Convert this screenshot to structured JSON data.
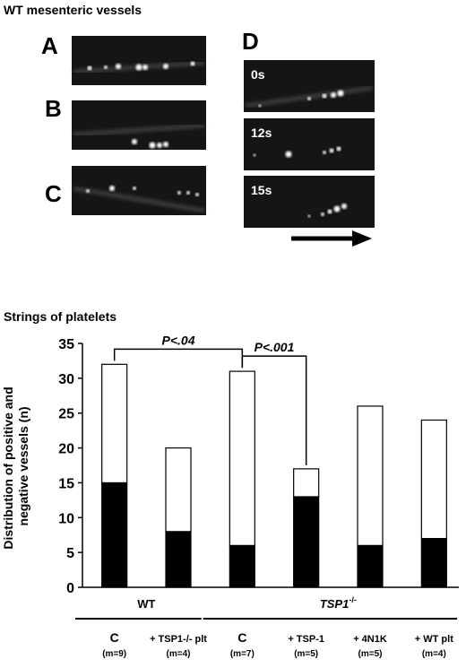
{
  "microscopy": {
    "title": "WT mesenteric vessels",
    "panels": [
      "A",
      "B",
      "C",
      "D"
    ],
    "timepoints": [
      "0s",
      "12s",
      "15s"
    ]
  },
  "chart_data": {
    "type": "stacked-bar",
    "title": "Strings of platelets",
    "y_label": [
      "Distribution of positive and",
      "negative vessels (n)"
    ],
    "categories": [
      "C",
      "+ TSP1-/- plt",
      "C",
      "+ TSP-1",
      "+ 4N1K",
      "+ WT plt"
    ],
    "sample_sizes": [
      "(m=9)",
      "(m=4)",
      "(m=7)",
      "(m=5)",
      "(m=5)",
      "(m=4)"
    ],
    "groups": [
      {
        "label": "WT",
        "sup": ""
      },
      {
        "label": "TSP1",
        "sup": "-/-"
      }
    ],
    "series": [
      {
        "color": "#000000",
        "values": [
          15,
          8,
          6,
          13,
          6,
          7
        ]
      },
      {
        "color": "#ffffff",
        "values": [
          17,
          12,
          25,
          4,
          20,
          17
        ]
      }
    ],
    "annotations": [
      "P<.04",
      "P<.001"
    ],
    "ylim": [
      0,
      35
    ],
    "yticks": [
      0,
      5,
      10,
      15,
      20,
      25,
      30,
      35
    ]
  }
}
